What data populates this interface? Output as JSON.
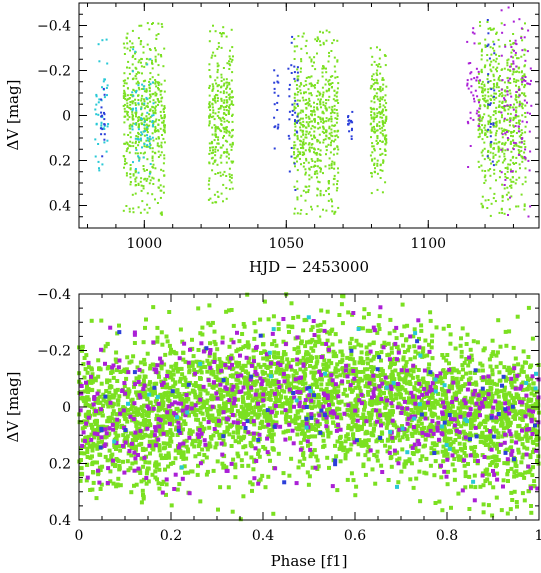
{
  "chart_data": [
    {
      "type": "scatter",
      "xlabel": "HJD − 2453000",
      "ylabel": "ΔV [mag]",
      "xlim": [
        977,
        1139
      ],
      "ylim": [
        0.5,
        -0.5
      ],
      "x_ticks": [
        1000,
        1050,
        1100
      ],
      "y_ticks": [
        -0.4,
        -0.2,
        0,
        0.2,
        0.4
      ],
      "x_tick_labels": [
        "1000",
        "1050",
        "1100"
      ],
      "y_tick_labels": [
        "−0.4",
        "−0.2",
        "0",
        "0.2",
        "0.4"
      ],
      "y_inverted": true,
      "grid": false,
      "series": [
        {
          "color": "#7be021",
          "seasons": [
            {
              "x_start": 993,
              "x_end": 1007,
              "y_min": -0.42,
              "y_max": 0.45
            },
            {
              "x_start": 1023,
              "x_end": 1031,
              "y_min": -0.4,
              "y_max": 0.4
            },
            {
              "x_start": 1053,
              "x_end": 1068,
              "y_min": -0.38,
              "y_max": 0.45
            },
            {
              "x_start": 1080,
              "x_end": 1085,
              "y_min": -0.31,
              "y_max": 0.35
            },
            {
              "x_start": 1118,
              "x_end": 1134,
              "y_min": -0.42,
              "y_max": 0.45
            }
          ]
        },
        {
          "color": "#29c9d6",
          "seasons": [
            {
              "x_start": 983,
              "x_end": 987,
              "y_min": -0.35,
              "y_max": 0.25
            },
            {
              "x_start": 996,
              "x_end": 1003,
              "y_min": -0.3,
              "y_max": 0.3
            }
          ]
        },
        {
          "color": "#2b3fd9",
          "seasons": [
            {
              "x_start": 985,
              "x_end": 986,
              "y_min": -0.15,
              "y_max": 0.2
            },
            {
              "x_start": 1046,
              "x_end": 1047,
              "y_min": -0.25,
              "y_max": 0.15
            },
            {
              "x_start": 1051,
              "x_end": 1054,
              "y_min": -0.35,
              "y_max": 0.35
            },
            {
              "x_start": 1072,
              "x_end": 1073,
              "y_min": -0.05,
              "y_max": 0.12
            },
            {
              "x_start": 1121,
              "x_end": 1123,
              "y_min": -0.45,
              "y_max": 0.35
            }
          ]
        },
        {
          "color": "#aa1fd6",
          "seasons": [
            {
              "x_start": 1114,
              "x_end": 1118,
              "y_min": -0.4,
              "y_max": 0.3
            },
            {
              "x_start": 1126,
              "x_end": 1136,
              "y_min": -0.48,
              "y_max": 0.45
            }
          ]
        }
      ]
    },
    {
      "type": "scatter",
      "xlabel": "Phase [f1]",
      "ylabel": "ΔV [mag]",
      "xlim": [
        0,
        1
      ],
      "ylim": [
        0.4,
        -0.4
      ],
      "x_ticks": [
        0,
        0.2,
        0.4,
        0.6,
        0.8,
        1
      ],
      "y_ticks": [
        -0.4,
        -0.2,
        0,
        0.2,
        0.4
      ],
      "x_tick_labels": [
        "0",
        "0.2",
        "0.4",
        "0.6",
        "0.8",
        "1"
      ],
      "y_tick_labels": [
        "−0.4",
        "−0.2",
        "0",
        "0.2",
        "0.4"
      ],
      "y_inverted": true,
      "grid": false,
      "variation": {
        "amplitude": 0.05,
        "peak_phase": 0.5,
        "scatter_sigma": 0.13
      },
      "series": [
        {
          "color": "#7be021",
          "approx_points": 3400
        },
        {
          "color": "#aa1fd6",
          "approx_points": 520
        },
        {
          "color": "#2b3fd9",
          "approx_points": 60
        },
        {
          "color": "#29c9d6",
          "approx_points": 40
        }
      ]
    }
  ]
}
